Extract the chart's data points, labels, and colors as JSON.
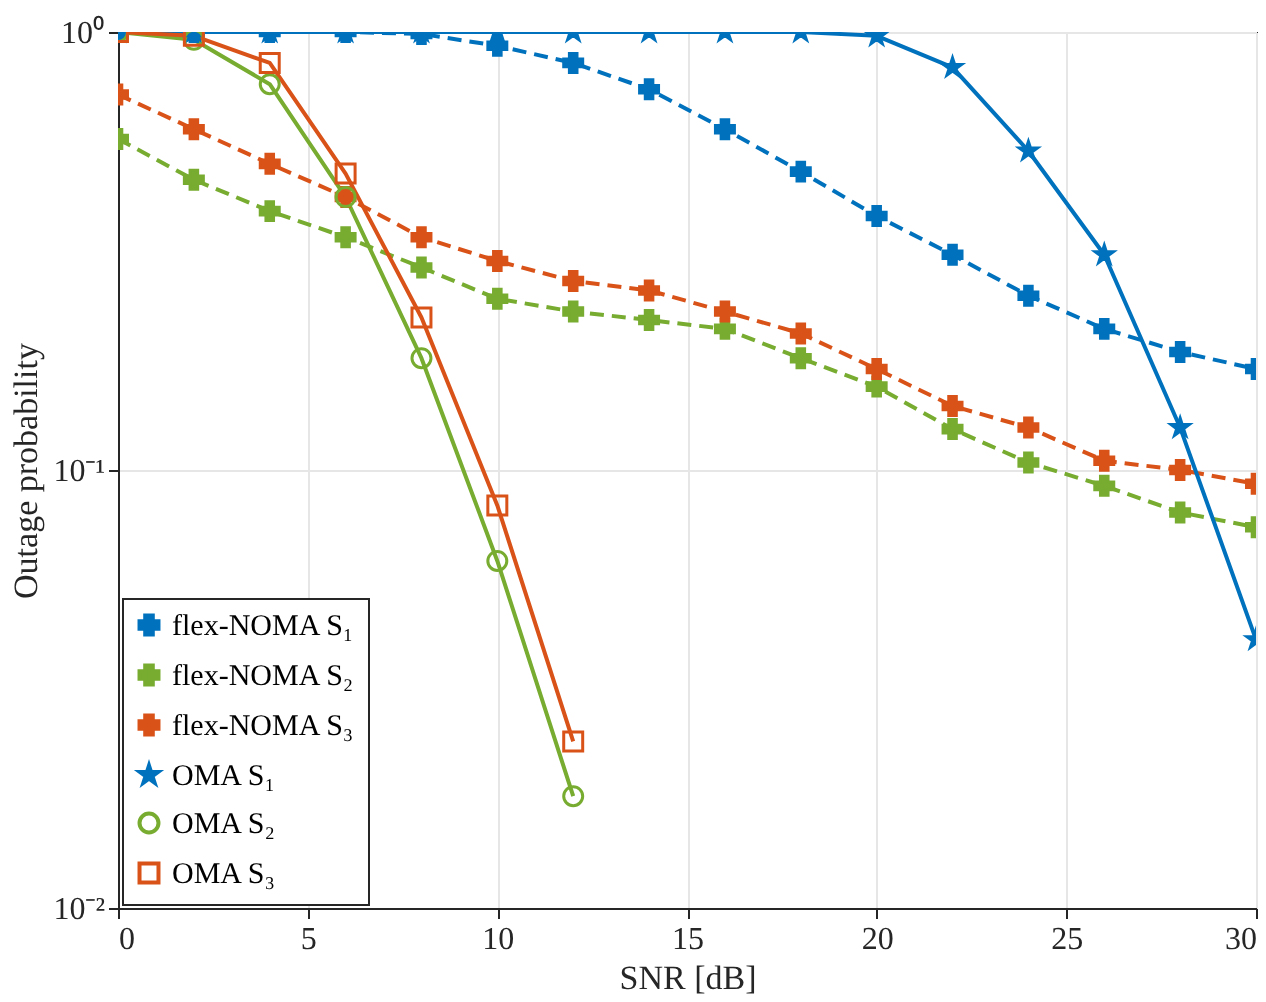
{
  "chart_data": {
    "type": "line",
    "xlabel": "SNR [dB]",
    "ylabel": "Outage probability",
    "log": "y",
    "grid": true,
    "legend": "bottom left",
    "x": [
      0,
      2,
      4,
      6,
      8,
      10,
      12,
      14,
      16,
      18,
      20,
      22,
      24,
      26,
      28,
      30
    ],
    "xlim": [
      0,
      30
    ],
    "xticks": [
      0,
      5,
      10,
      15,
      20,
      25,
      30
    ],
    "ylim": [
      0.01,
      1
    ],
    "yticks": [
      {
        "value": 0.01,
        "label": "10⁻²"
      },
      {
        "value": 0.1,
        "label": "10⁻¹"
      },
      {
        "value": 1,
        "label": "10⁰"
      }
    ],
    "series": [
      {
        "name": "flex-NOMA S₁",
        "color": "#0072bd",
        "marker": "cross",
        "line_style": "dashed",
        "values": [
          1.0,
          1.0,
          1.0,
          1.0,
          0.99,
          0.93,
          0.85,
          0.74,
          0.6,
          0.48,
          0.38,
          0.31,
          0.25,
          0.21,
          0.186,
          0.17
        ]
      },
      {
        "name": "flex-NOMA S₂",
        "color": "#77ac30",
        "marker": "cross",
        "line_style": "dashed",
        "values": [
          0.57,
          0.46,
          0.39,
          0.34,
          0.29,
          0.246,
          0.23,
          0.22,
          0.21,
          0.18,
          0.155,
          0.124,
          0.104,
          0.092,
          0.08,
          0.074
        ]
      },
      {
        "name": "flex-NOMA S₃",
        "color": "#d95319",
        "marker": "cross",
        "line_style": "dashed",
        "values": [
          0.72,
          0.6,
          0.5,
          0.42,
          0.34,
          0.3,
          0.27,
          0.257,
          0.23,
          0.205,
          0.17,
          0.14,
          0.125,
          0.105,
          0.1,
          0.093
        ]
      },
      {
        "name": "OMA S₁",
        "color": "#0072bd",
        "marker": "star",
        "line_style": "solid",
        "values": [
          1.0,
          1.0,
          1.0,
          1.0,
          1.0,
          1.0,
          1.0,
          1.0,
          1.0,
          1.0,
          0.98,
          0.83,
          0.535,
          0.31,
          0.125,
          0.041
        ]
      },
      {
        "name": "OMA S₂",
        "color": "#77ac30",
        "marker": "circle",
        "line_style": "solid",
        "values": [
          1.0,
          0.96,
          0.76,
          0.42,
          0.18,
          0.062,
          0.018,
          null,
          null,
          null,
          null,
          null,
          null,
          null,
          null,
          null
        ]
      },
      {
        "name": "OMA S₃",
        "color": "#d95319",
        "marker": "square",
        "line_style": "solid",
        "values": [
          1.0,
          0.98,
          0.85,
          0.475,
          0.223,
          0.083,
          0.024,
          null,
          null,
          null,
          null,
          null,
          null,
          null,
          null,
          null
        ]
      }
    ]
  }
}
